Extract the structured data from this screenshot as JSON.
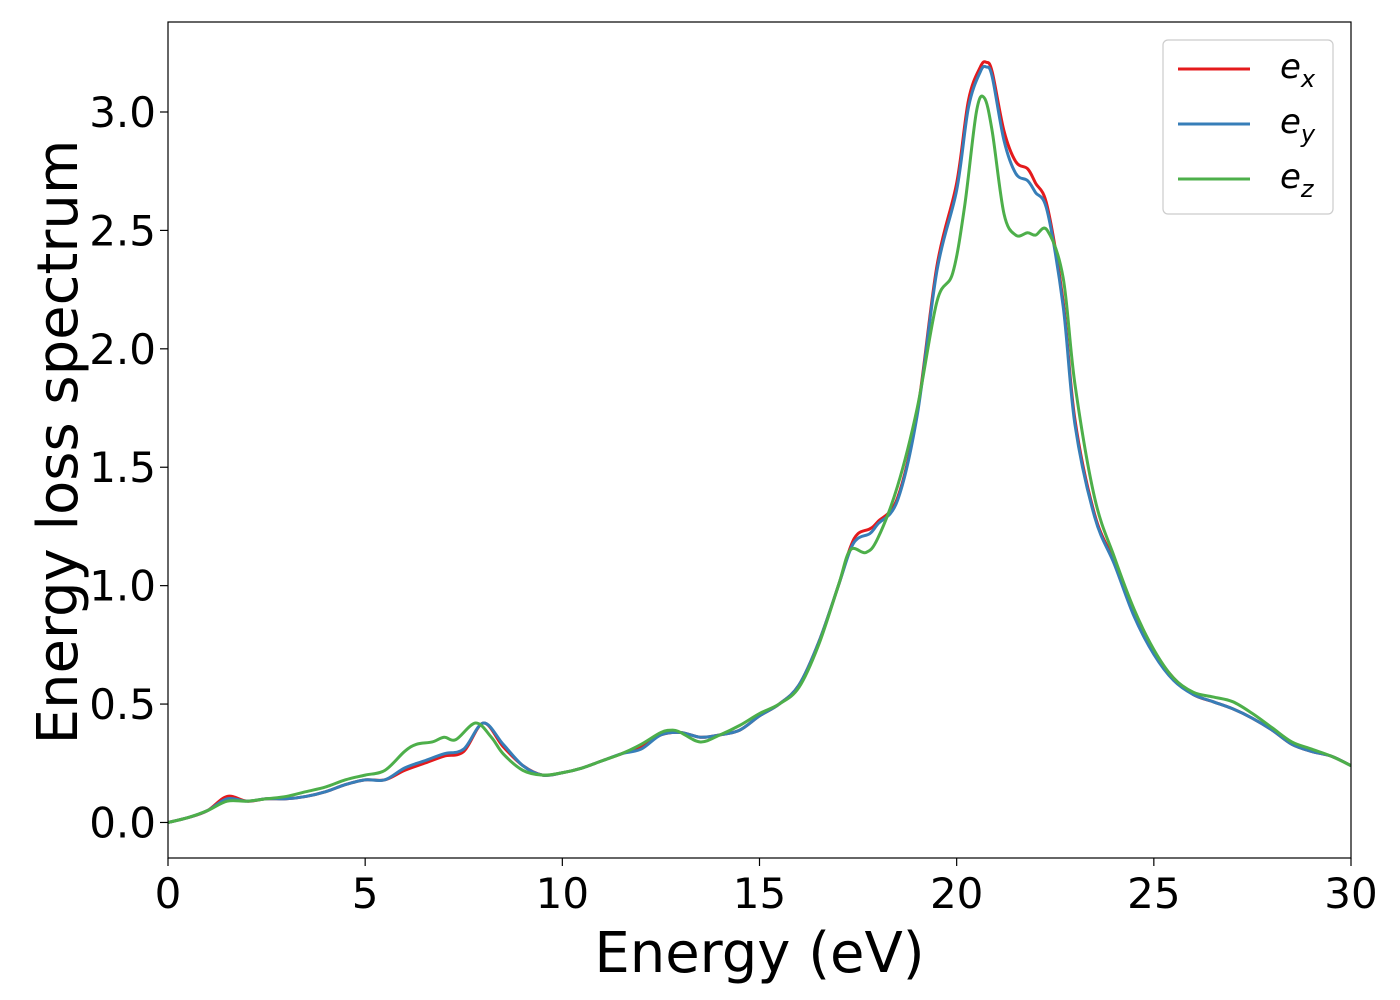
{
  "chart_data": {
    "type": "line",
    "title": "",
    "xlabel": "Energy (eV)",
    "ylabel": "Energy loss spectrum",
    "xlim": [
      0,
      30
    ],
    "ylim": [
      -0.15,
      3.38
    ],
    "xticks": [
      0,
      5,
      10,
      15,
      20,
      25,
      30
    ],
    "xtick_labels": [
      "0",
      "5",
      "10",
      "15",
      "20",
      "25",
      "30"
    ],
    "yticks": [
      0.0,
      0.5,
      1.0,
      1.5,
      2.0,
      2.5,
      3.0
    ],
    "ytick_labels": [
      "0.0",
      "0.5",
      "1.0",
      "1.5",
      "2.0",
      "2.5",
      "3.0"
    ],
    "grid": false,
    "legend_position": "top-right",
    "series": [
      {
        "name": "e_x",
        "legend_base": "e",
        "legend_sub": "x",
        "color": "#e41a1c",
        "x": [
          0,
          0.5,
          1,
          1.5,
          2,
          2.5,
          3,
          3.5,
          4,
          4.5,
          5,
          5.5,
          6,
          6.5,
          7,
          7.5,
          8,
          8.5,
          9,
          9.5,
          10,
          10.5,
          11,
          11.5,
          12,
          12.5,
          13,
          13.5,
          14,
          14.5,
          15,
          15.5,
          16,
          16.5,
          17,
          17.3,
          17.5,
          17.8,
          18,
          18.5,
          19,
          19.5,
          20,
          20.3,
          20.6,
          20.75,
          20.9,
          21.2,
          21.5,
          21.8,
          22,
          22.3,
          22.7,
          23,
          23.5,
          24,
          24.5,
          25,
          25.5,
          26,
          26.5,
          27,
          27.5,
          28,
          28.5,
          29,
          29.5,
          30
        ],
        "y": [
          0.0,
          0.02,
          0.05,
          0.11,
          0.09,
          0.1,
          0.1,
          0.11,
          0.13,
          0.16,
          0.18,
          0.18,
          0.22,
          0.25,
          0.28,
          0.3,
          0.42,
          0.32,
          0.24,
          0.2,
          0.21,
          0.23,
          0.26,
          0.29,
          0.32,
          0.37,
          0.38,
          0.36,
          0.37,
          0.39,
          0.45,
          0.5,
          0.58,
          0.76,
          1.0,
          1.16,
          1.22,
          1.24,
          1.27,
          1.37,
          1.73,
          2.35,
          2.7,
          3.05,
          3.19,
          3.21,
          3.17,
          2.92,
          2.79,
          2.76,
          2.7,
          2.6,
          2.2,
          1.7,
          1.3,
          1.1,
          0.88,
          0.72,
          0.61,
          0.54,
          0.51,
          0.48,
          0.44,
          0.39,
          0.33,
          0.3,
          0.28,
          0.24
        ]
      },
      {
        "name": "e_y",
        "legend_base": "e",
        "legend_sub": "y",
        "color": "#377eb8",
        "x": [
          0,
          0.5,
          1,
          1.5,
          2,
          2.5,
          3,
          3.5,
          4,
          4.5,
          5,
          5.5,
          6,
          6.5,
          7,
          7.5,
          8,
          8.5,
          9,
          9.5,
          10,
          10.5,
          11,
          11.5,
          12,
          12.5,
          13,
          13.5,
          14,
          14.5,
          15,
          15.5,
          16,
          16.5,
          17,
          17.3,
          17.5,
          17.8,
          18,
          18.5,
          19,
          19.5,
          20,
          20.3,
          20.6,
          20.75,
          20.9,
          21.2,
          21.5,
          21.8,
          22,
          22.3,
          22.7,
          23,
          23.5,
          24,
          24.5,
          25,
          25.5,
          26,
          26.5,
          27,
          27.5,
          28,
          28.5,
          29,
          29.5,
          30
        ],
        "y": [
          0.0,
          0.02,
          0.05,
          0.1,
          0.09,
          0.1,
          0.1,
          0.11,
          0.13,
          0.16,
          0.18,
          0.18,
          0.23,
          0.26,
          0.29,
          0.31,
          0.42,
          0.33,
          0.24,
          0.2,
          0.21,
          0.23,
          0.26,
          0.29,
          0.31,
          0.37,
          0.38,
          0.36,
          0.37,
          0.39,
          0.45,
          0.5,
          0.58,
          0.76,
          1.0,
          1.15,
          1.2,
          1.22,
          1.26,
          1.36,
          1.72,
          2.33,
          2.67,
          3.02,
          3.17,
          3.19,
          3.15,
          2.88,
          2.74,
          2.71,
          2.66,
          2.58,
          2.18,
          1.68,
          1.29,
          1.09,
          0.87,
          0.71,
          0.6,
          0.54,
          0.51,
          0.48,
          0.44,
          0.39,
          0.33,
          0.3,
          0.28,
          0.24
        ]
      },
      {
        "name": "e_z",
        "legend_base": "e",
        "legend_sub": "z",
        "color": "#4daf4a",
        "x": [
          0,
          0.5,
          1,
          1.5,
          2,
          2.5,
          3,
          3.5,
          4,
          4.5,
          5,
          5.5,
          6,
          6.3,
          6.7,
          7,
          7.3,
          7.8,
          8.2,
          8.5,
          9,
          9.5,
          10,
          10.5,
          11,
          11.5,
          12,
          12.5,
          12.8,
          13,
          13.5,
          14,
          14.5,
          15,
          15.5,
          16,
          16.5,
          17,
          17.3,
          17.7,
          18,
          18.5,
          19,
          19.5,
          19.9,
          20.2,
          20.5,
          20.7,
          20.9,
          21.2,
          21.5,
          21.8,
          22,
          22.3,
          22.7,
          23,
          23.5,
          24,
          24.5,
          25,
          25.5,
          26,
          26.5,
          27,
          27.5,
          28,
          28.5,
          29,
          29.5,
          30
        ],
        "y": [
          0.0,
          0.02,
          0.05,
          0.09,
          0.09,
          0.1,
          0.11,
          0.13,
          0.15,
          0.18,
          0.2,
          0.22,
          0.3,
          0.33,
          0.34,
          0.36,
          0.35,
          0.42,
          0.36,
          0.29,
          0.22,
          0.2,
          0.21,
          0.23,
          0.26,
          0.29,
          0.33,
          0.38,
          0.39,
          0.38,
          0.34,
          0.37,
          0.41,
          0.46,
          0.5,
          0.57,
          0.75,
          1.0,
          1.15,
          1.14,
          1.2,
          1.42,
          1.75,
          2.2,
          2.32,
          2.6,
          3.0,
          3.06,
          2.92,
          2.57,
          2.48,
          2.49,
          2.48,
          2.5,
          2.3,
          1.85,
          1.37,
          1.12,
          0.9,
          0.73,
          0.61,
          0.55,
          0.53,
          0.51,
          0.46,
          0.4,
          0.34,
          0.31,
          0.28,
          0.24
        ]
      }
    ]
  }
}
